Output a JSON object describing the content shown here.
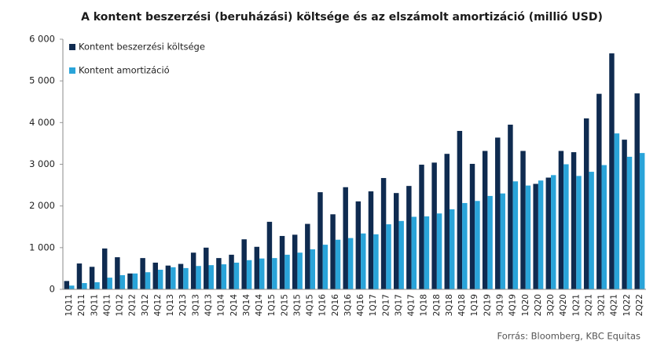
{
  "chart_data": {
    "type": "bar",
    "title": "A kontent beszerzési (beruházási) költsége és az elszámolt amortizáció (millió USD)",
    "source": "Forrás: Bloomberg,  KBC Equitas",
    "categories": [
      "1Q11",
      "2Q11",
      "3Q11",
      "4Q11",
      "1Q12",
      "2Q12",
      "3Q12",
      "4Q12",
      "1Q13",
      "2Q13",
      "3Q13",
      "4Q13",
      "1Q14",
      "2Q14",
      "3Q14",
      "4Q14",
      "1Q15",
      "2Q15",
      "3Q15",
      "4Q15",
      "1Q16",
      "2Q16",
      "3Q16",
      "4Q16",
      "1Q17",
      "2Q17",
      "3Q17",
      "4Q17",
      "1Q18",
      "2Q18",
      "3Q18",
      "4Q18",
      "1Q19",
      "2Q19",
      "3Q19",
      "4Q19",
      "1Q20",
      "2Q20",
      "3Q20",
      "4Q20",
      "1Q21",
      "2Q21",
      "3Q21",
      "4Q21",
      "1Q22",
      "2Q22"
    ],
    "series": [
      {
        "name": "Kontent beszerzési költsége",
        "color": "#0f2b50",
        "values": [
          200,
          620,
          540,
          980,
          770,
          380,
          750,
          640,
          570,
          610,
          880,
          1000,
          750,
          830,
          1200,
          1020,
          1620,
          1280,
          1310,
          1570,
          2330,
          1800,
          2450,
          2110,
          2350,
          2670,
          2310,
          2480,
          2990,
          3040,
          3250,
          3800,
          3010,
          3320,
          3640,
          3950,
          3320,
          2530,
          2680,
          3320,
          3290,
          4100,
          4690,
          5660,
          3590,
          4700
        ]
      },
      {
        "name": "Kontent amortizáció",
        "color": "#2aa4d9",
        "values": [
          90,
          150,
          170,
          280,
          340,
          380,
          410,
          470,
          530,
          510,
          560,
          580,
          600,
          640,
          700,
          740,
          750,
          830,
          880,
          960,
          1070,
          1190,
          1230,
          1340,
          1320,
          1560,
          1640,
          1740,
          1750,
          1820,
          1920,
          2070,
          2120,
          2240,
          2300,
          2590,
          2490,
          2610,
          2740,
          3000,
          2720,
          2820,
          2980,
          3740,
          3180,
          3270
        ]
      }
    ],
    "ylim": [
      0,
      6000
    ],
    "yticks": [
      0,
      {
        "value": 1000,
        "label": "1 000"
      },
      {
        "value": 2000,
        "label": "2 000"
      },
      {
        "value": 3000,
        "label": "3 000"
      },
      {
        "value": 4000,
        "label": "4 000"
      },
      {
        "value": 5000,
        "label": "5 000"
      },
      {
        "value": 6000,
        "label": "6 000"
      }
    ],
    "grid": false,
    "legend": "upper left"
  }
}
